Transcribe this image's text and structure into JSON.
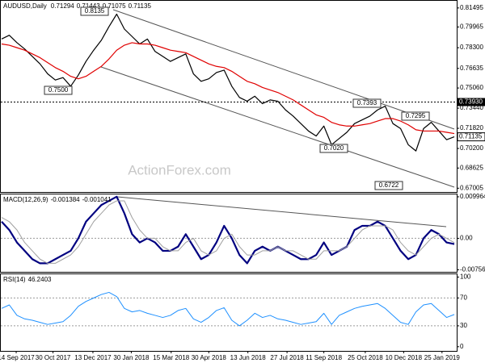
{
  "chart_data": [
    {
      "type": "line",
      "title": "AUDUSD,Daily",
      "ohlc": [
        0.71294,
        0.71443,
        0.71075,
        0.71135
      ],
      "watermark": "ActionForex.com",
      "xlim": [
        0,
        59
      ],
      "ylim": [
        0.667,
        0.8207
      ],
      "yticks": [
        0.81495,
        0.79965,
        {
          "value": 0.783,
          "label": "0.78300"
        },
        0.76635,
        {
          "value": 0.7506,
          "label": "0.75060"
        },
        {
          "value": 0.7344,
          "label": "0.73440"
        },
        {
          "value": 0.7182,
          "label": "0.71820"
        },
        {
          "value": 0.702,
          "label": "0.70200"
        },
        0.68625,
        0.67005
      ],
      "levels": [
        {
          "value": 0.7393,
          "label": "0.73930"
        }
      ],
      "annotations": [
        "0.8135",
        "0.7500",
        "0.7393",
        "0.7295",
        "0.7020",
        "0.6722"
      ],
      "series": [
        {
          "color": "#000000",
          "values": [
            0.79,
            0.793,
            0.787,
            0.782,
            0.776,
            0.77,
            0.762,
            0.757,
            0.759,
            0.752,
            0.761,
            0.772,
            0.781,
            0.789,
            0.8,
            0.81,
            0.798,
            0.792,
            0.786,
            0.79,
            0.78,
            0.776,
            0.772,
            0.775,
            0.778,
            0.762,
            0.756,
            0.758,
            0.763,
            0.765,
            0.752,
            0.743,
            0.74,
            0.744,
            0.738,
            0.741,
            0.74,
            0.733,
            0.728,
            0.722,
            0.716,
            0.712,
            0.72,
            0.705,
            0.71,
            0.715,
            0.722,
            0.725,
            0.728,
            0.733,
            0.736,
            0.722,
            0.718,
            0.705,
            0.7,
            0.718,
            0.723,
            0.716,
            0.709,
            0.71135
          ]
        },
        {
          "color": "#e00000",
          "values": [
            0.786,
            0.785,
            0.783,
            0.781,
            0.778,
            0.775,
            0.771,
            0.767,
            0.764,
            0.76,
            0.758,
            0.76,
            0.764,
            0.768,
            0.774,
            0.781,
            0.785,
            0.787,
            0.786,
            0.786,
            0.785,
            0.783,
            0.781,
            0.78,
            0.779,
            0.776,
            0.773,
            0.77,
            0.768,
            0.767,
            0.764,
            0.76,
            0.756,
            0.754,
            0.751,
            0.749,
            0.747,
            0.744,
            0.741,
            0.737,
            0.733,
            0.729,
            0.727,
            0.723,
            0.721,
            0.72,
            0.72,
            0.721,
            0.722,
            0.724,
            0.726,
            0.726,
            0.724,
            0.721,
            0.717,
            0.716,
            0.716,
            0.716,
            0.715,
            0.714
          ]
        }
      ]
    },
    {
      "type": "line",
      "title": "MACD(12,26,9)",
      "xlim": [
        0,
        59
      ],
      "ylim": [
        -0.00805,
        0.01054
      ],
      "yticks": [
        0.009964,
        {
          "value": 0,
          "label": "0.00"
        },
        -0.00756
      ],
      "levels": [
        0
      ],
      "series": [
        {
          "color": "#000080",
          "width": 2.2,
          "values": [
            0.004,
            0.002,
            -0.001,
            -0.003,
            -0.005,
            -0.006,
            -0.006,
            -0.005,
            -0.004,
            -0.003,
            0.0,
            0.004,
            0.006,
            0.008,
            0.009,
            0.01,
            0.006,
            0.001,
            -0.001,
            0.0,
            -0.001,
            -0.003,
            -0.003,
            -0.002,
            0.001,
            -0.002,
            -0.005,
            -0.004,
            -0.001,
            0.003,
            0.0,
            -0.004,
            -0.006,
            -0.003,
            -0.002,
            -0.003,
            -0.002,
            -0.003,
            -0.004,
            -0.005,
            -0.005,
            -0.004,
            -0.001,
            -0.004,
            -0.003,
            -0.002,
            0.002,
            0.003,
            0.003,
            0.004,
            0.003,
            0.0,
            -0.003,
            -0.005,
            -0.004,
            0.0,
            0.002,
            0.001,
            -0.001,
            -0.001384
          ]
        },
        {
          "color": "#a0a0a0",
          "width": 1,
          "values": [
            0.005,
            0.004,
            0.002,
            -0.001,
            -0.003,
            -0.005,
            -0.006,
            -0.006,
            -0.005,
            -0.004,
            -0.002,
            0.001,
            0.004,
            0.006,
            0.008,
            0.009,
            0.009,
            0.005,
            0.002,
            0.0,
            0.0,
            -0.002,
            -0.003,
            -0.003,
            -0.001,
            0.0,
            -0.003,
            -0.004,
            -0.003,
            0.0,
            0.001,
            -0.002,
            -0.004,
            -0.004,
            -0.003,
            -0.003,
            -0.002,
            -0.003,
            -0.003,
            -0.004,
            -0.005,
            -0.005,
            -0.003,
            -0.003,
            -0.003,
            -0.002,
            0.0,
            0.002,
            0.003,
            0.003,
            0.003,
            0.002,
            -0.001,
            -0.003,
            -0.004,
            -0.002,
            0.0,
            0.001,
            0.0,
            -0.001041
          ]
        }
      ]
    },
    {
      "type": "line",
      "title": "RSI(14)",
      "xlim": [
        0,
        59
      ],
      "ylim": [
        -6,
        104
      ],
      "yticks": [
        100,
        70,
        30,
        0
      ],
      "levels": [
        70,
        30
      ],
      "xticks": [
        {
          "value": 1.9,
          "label": "14 Sep 2017"
        },
        {
          "value": 6.7,
          "label": "30 Oct 2017"
        },
        {
          "value": 11.9,
          "label": "13 Dec 2017"
        },
        {
          "value": 16.9,
          "label": "30 Jan 2018"
        },
        {
          "value": 22.1,
          "label": "15 Mar 2018"
        },
        {
          "value": 27,
          "label": "30 Apr 2018"
        },
        {
          "value": 32.1,
          "label": "13 Jun 2018"
        },
        {
          "value": 37.2,
          "label": "27 Jul 2018"
        },
        {
          "value": 42,
          "label": "11 Sep 2018"
        },
        {
          "value": 47.4,
          "label": "25 Oct 2018"
        },
        {
          "value": 52.4,
          "label": "10 Dec 2018"
        },
        {
          "value": 57.4,
          "label": "25 Jan 2019"
        }
      ],
      "series": [
        {
          "color": "#1e90ff",
          "width": 1,
          "values": [
            55,
            60,
            45,
            40,
            38,
            35,
            32,
            34,
            36,
            45,
            58,
            65,
            70,
            75,
            78,
            72,
            55,
            50,
            52,
            48,
            45,
            42,
            45,
            52,
            55,
            40,
            35,
            42,
            52,
            56,
            38,
            30,
            38,
            48,
            42,
            45,
            40,
            38,
            35,
            32,
            34,
            36,
            48,
            32,
            45,
            50,
            55,
            58,
            60,
            62,
            55,
            45,
            35,
            32,
            50,
            60,
            62,
            52,
            42,
            46.2403
          ]
        }
      ]
    }
  ]
}
